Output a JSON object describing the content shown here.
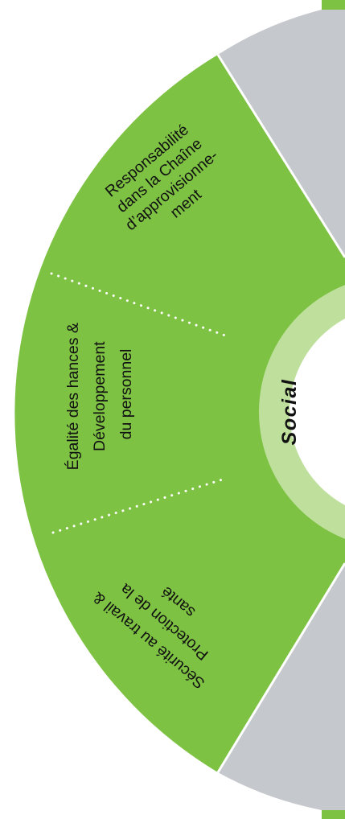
{
  "colors": {
    "green": "#7dc242",
    "light_green": "#bfe09d",
    "grey": "#c5c8cc",
    "white": "#ffffff",
    "text": "#111111"
  },
  "center_label": "Social",
  "segments": {
    "supply_chain": {
      "lines": [
        "Responsabilité",
        "dans la Chaîne",
        "d’approvisionne-",
        "ment"
      ]
    },
    "equality": {
      "lines": [
        "Égalité des hances &",
        "Développement",
        "du personnel"
      ]
    },
    "safety": {
      "lines": [
        "Sécurité au travail &",
        "Protection de la",
        "santé"
      ]
    }
  }
}
